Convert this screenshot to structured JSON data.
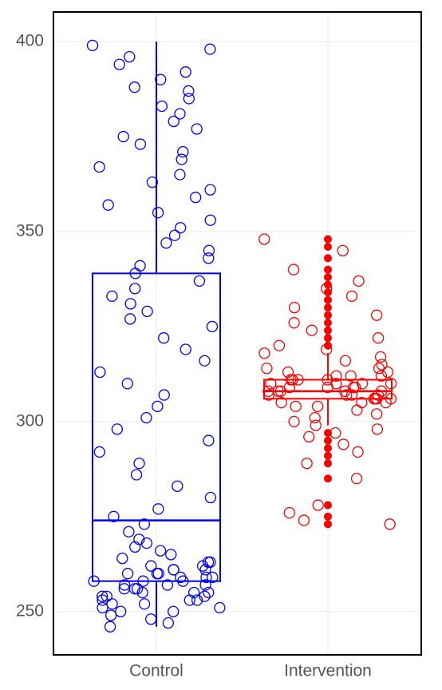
{
  "chart_data": {
    "type": "box",
    "categories": [
      "Control",
      "Intervention"
    ],
    "ylim": [
      238.6,
      407.8
    ],
    "yticks": [
      250,
      300,
      350,
      400
    ],
    "grid": true,
    "boxes": [
      {
        "color": "#0000ff",
        "whisker_low": 246,
        "q1": 258,
        "median": 274,
        "q3": 339,
        "whisker_high": 400,
        "outliers": []
      },
      {
        "color": "#ff0000",
        "whisker_low": 299,
        "q1": 306,
        "median": 308,
        "q3": 311,
        "whisker_high": 318,
        "outliers": [
          348,
          346,
          343,
          340,
          338,
          336,
          334,
          332,
          330,
          328,
          326,
          324,
          322,
          320,
          297,
          295,
          293,
          291,
          289,
          285,
          278,
          275,
          273
        ]
      }
    ],
    "points": [
      {
        "values": [
          399,
          398,
          396,
          394,
          392,
          390,
          388,
          387,
          385,
          383,
          381,
          379,
          377,
          375,
          373,
          371,
          369,
          367,
          365,
          363,
          361,
          359,
          357,
          355,
          353,
          351,
          349,
          347,
          345,
          343,
          341,
          339,
          337,
          335,
          333,
          331,
          329,
          327,
          325,
          322,
          319,
          316,
          313,
          310,
          307,
          304,
          301,
          298,
          295,
          292,
          289,
          286,
          283,
          280,
          277,
          275,
          273,
          271,
          269,
          268,
          267,
          266,
          265,
          264,
          263,
          262,
          262,
          261,
          261,
          260,
          260,
          259,
          259,
          258,
          258,
          257,
          257,
          256,
          256,
          255,
          255,
          254,
          254,
          253,
          253,
          252,
          252,
          251,
          251,
          250,
          250,
          249,
          248,
          247,
          246,
          263,
          261,
          259,
          257,
          255,
          253,
          260,
          258,
          256,
          254
        ]
      },
      {
        "values": [
          348,
          345,
          340,
          337,
          335,
          333,
          330,
          328,
          326,
          324,
          322,
          320,
          319,
          318,
          317,
          316,
          315,
          314,
          314,
          313,
          313,
          312,
          312,
          311,
          311,
          311,
          310,
          310,
          310,
          309,
          309,
          309,
          308,
          308,
          308,
          308,
          307,
          307,
          307,
          306,
          306,
          306,
          305,
          305,
          304,
          304,
          303,
          302,
          301,
          300,
          299,
          298,
          297,
          296,
          294,
          292,
          289,
          285,
          278,
          276,
          274,
          273,
          310,
          308,
          306,
          312,
          309,
          307,
          305,
          311
        ]
      }
    ]
  }
}
